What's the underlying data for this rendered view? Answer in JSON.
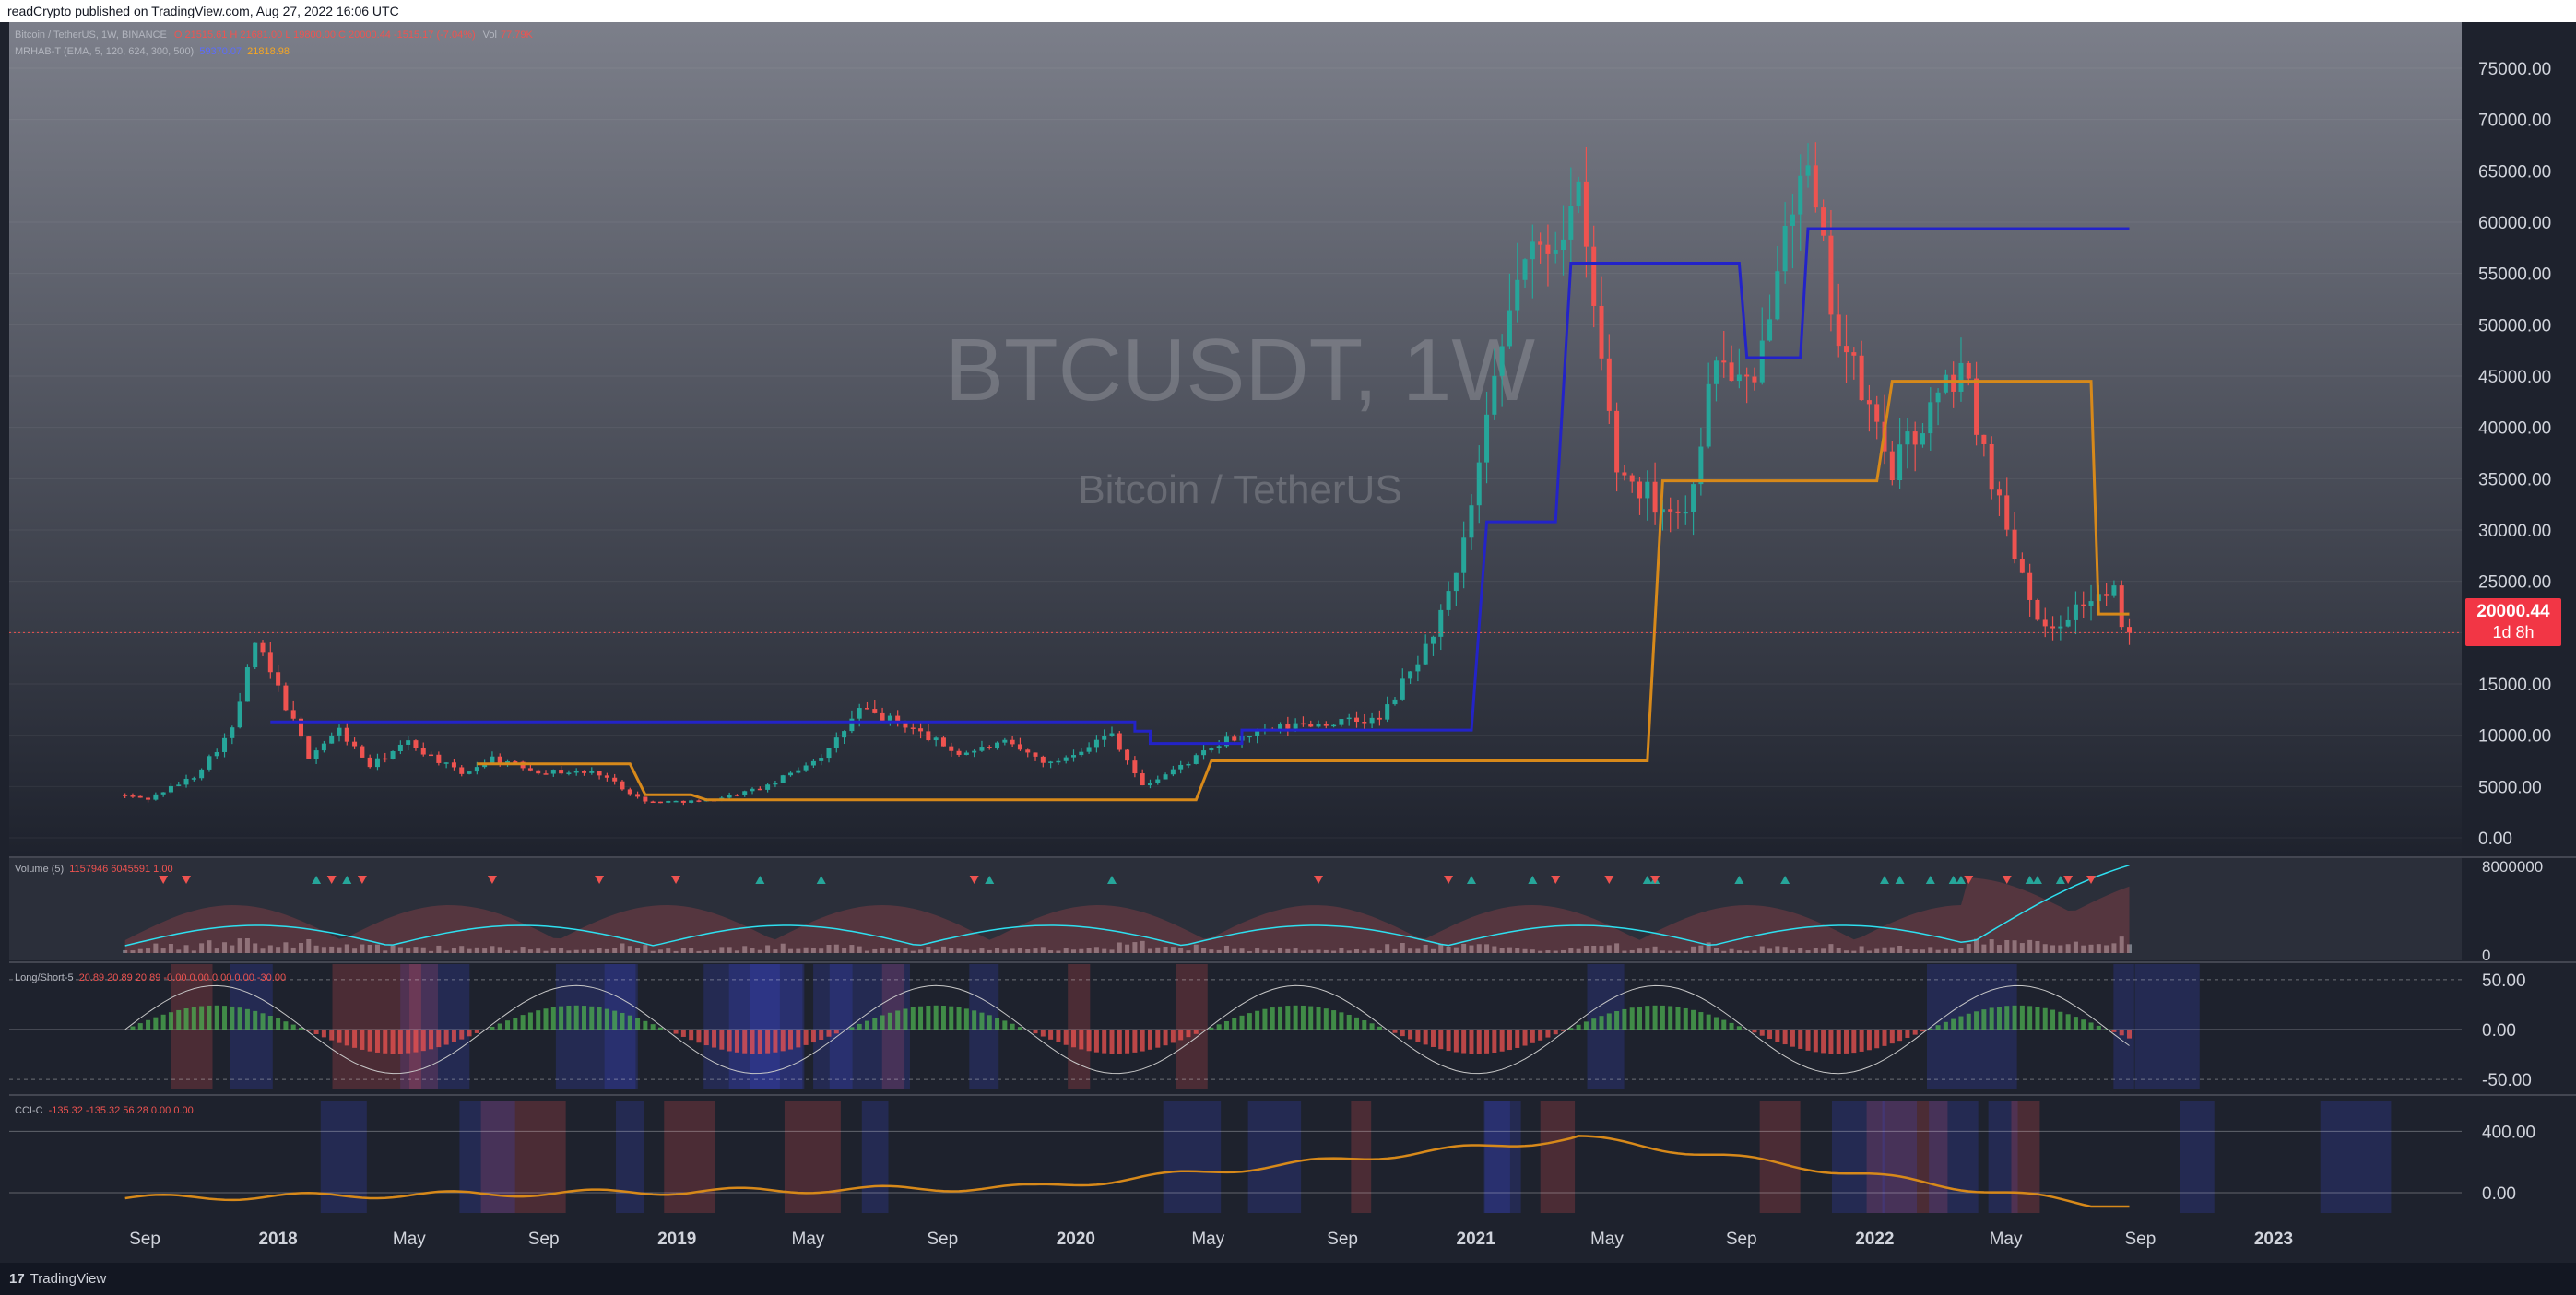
{
  "publish_note": "readCrypto published on TradingView.com, Aug 27, 2022 16:06 UTC",
  "footer": {
    "logo": "17",
    "brand": "TradingView"
  },
  "legend": {
    "symbol": "Bitcoin / TetherUS, 1W, BINANCE",
    "ohlc": "O 21515.61  H 21681.00  L 19800.00  C 20000.44  -1515.17 (-7.04%)",
    "vol_label": "Vol",
    "vol_value": "77.79K",
    "indicator": "MRHAB-T (EMA, 5, 120, 624, 300, 500)",
    "indicator_v1": "59370.07",
    "indicator_v2": "21818.98"
  },
  "watermark": {
    "symbol": "BTCUSDT, 1W",
    "name": "Bitcoin / TetherUS"
  },
  "price_tag": {
    "price": "20000.44",
    "countdown": "1d 8h"
  },
  "colors": {
    "background_top": "#7c7f8a",
    "background_bottom": "#1e222d",
    "up": "#26a69a",
    "down": "#ef5350",
    "line_blue": "#2323c8",
    "line_orange": "#d7891a",
    "cyan": "#2ee0f0"
  },
  "panes": {
    "volume": {
      "label": "Volume (5)",
      "values": "1157946  6045591  1.00"
    },
    "longshort": {
      "label": "Long/Short-5",
      "values": "20.89  20.89  20.89  -0.00  0.00  0.00  0.00  -30.00"
    },
    "cci": {
      "label": "CCI-C",
      "values": "-135.32  -135.32  56.28  0.00  0.00"
    }
  },
  "chart_data": {
    "type": "candlestick",
    "interval": "1W",
    "y_axis": [
      "75000.00",
      "70000.00",
      "65000.00",
      "60000.00",
      "55000.00",
      "50000.00",
      "45000.00",
      "40000.00",
      "35000.00",
      "30000.00",
      "25000.00",
      "20000.00",
      "15000.00",
      "10000.00",
      "5000.00",
      "0.00"
    ],
    "x_axis": [
      "Sep",
      "2018",
      "May",
      "Sep",
      "2019",
      "May",
      "Sep",
      "2020",
      "May",
      "Sep",
      "2021",
      "May",
      "Sep",
      "2022",
      "May",
      "Sep",
      "2023"
    ],
    "x_axis_bold": [
      "2018",
      "2019",
      "2020",
      "2021",
      "2022",
      "2023"
    ],
    "ylim": [
      0,
      75000
    ],
    "price_path": [
      [
        "2017-08-14",
        4200
      ],
      [
        "2017-09-11",
        3800
      ],
      [
        "2017-10-23",
        6000
      ],
      [
        "2017-11-27",
        10500
      ],
      [
        "2017-12-18",
        19000
      ],
      [
        "2018-01-08",
        14500
      ],
      [
        "2018-02-05",
        8000
      ],
      [
        "2018-03-05",
        10500
      ],
      [
        "2018-04-02",
        7000
      ],
      [
        "2018-05-07",
        9300
      ],
      [
        "2018-06-25",
        6200
      ],
      [
        "2018-07-23",
        7800
      ],
      [
        "2018-09-03",
        6500
      ],
      [
        "2018-10-29",
        6300
      ],
      [
        "2018-12-10",
        3500
      ],
      [
        "2019-02-04",
        3600
      ],
      [
        "2019-04-01",
        5000
      ],
      [
        "2019-05-27",
        8500
      ],
      [
        "2019-06-24",
        12500
      ],
      [
        "2019-08-05",
        11000
      ],
      [
        "2019-09-23",
        8200
      ],
      [
        "2019-11-04",
        9200
      ],
      [
        "2019-12-16",
        7200
      ],
      [
        "2020-02-10",
        10200
      ],
      [
        "2020-03-09",
        5000
      ],
      [
        "2020-04-13",
        7000
      ],
      [
        "2020-05-25",
        9500
      ],
      [
        "2020-07-27",
        11000
      ],
      [
        "2020-10-12",
        11500
      ],
      [
        "2020-11-23",
        18500
      ],
      [
        "2020-12-21",
        25000
      ],
      [
        "2021-01-11",
        36000
      ],
      [
        "2021-02-15",
        55000
      ],
      [
        "2021-03-15",
        58000
      ],
      [
        "2021-04-12",
        62000
      ],
      [
        "2021-05-17",
        36000
      ],
      [
        "2021-06-21",
        33000
      ],
      [
        "2021-07-19",
        31500
      ],
      [
        "2021-08-16",
        47000
      ],
      [
        "2021-09-20",
        43000
      ],
      [
        "2021-10-18",
        62000
      ],
      [
        "2021-11-08",
        64000
      ],
      [
        "2021-12-06",
        49000
      ],
      [
        "2022-01-24",
        36000
      ],
      [
        "2022-03-28",
        46000
      ],
      [
        "2022-05-09",
        30000
      ],
      [
        "2022-06-13",
        20000
      ],
      [
        "2022-07-18",
        23000
      ],
      [
        "2022-08-15",
        24000
      ],
      [
        "2022-08-22",
        20000
      ]
    ],
    "blue_line": [
      [
        "2017-12-25",
        11300
      ],
      [
        "2020-02-24",
        11300
      ],
      [
        "2020-02-24",
        10400
      ],
      [
        "2020-03-09",
        10400
      ],
      [
        "2020-03-09",
        9200
      ],
      [
        "2020-06-01",
        9200
      ],
      [
        "2020-06-01",
        10500
      ],
      [
        "2020-12-28",
        10500
      ],
      [
        "2021-01-11",
        30800
      ],
      [
        "2021-03-15",
        30800
      ],
      [
        "2021-03-29",
        56000
      ],
      [
        "2021-08-30",
        56000
      ],
      [
        "2021-09-06",
        46800
      ],
      [
        "2021-10-25",
        46800
      ],
      [
        "2021-11-01",
        59370
      ],
      [
        "2022-08-22",
        59370
      ]
    ],
    "orange_line": [
      [
        "2018-07-02",
        7200
      ],
      [
        "2018-11-19",
        7200
      ],
      [
        "2018-12-03",
        4200
      ],
      [
        "2019-01-14",
        4200
      ],
      [
        "2019-01-28",
        3700
      ],
      [
        "2020-04-20",
        3700
      ],
      [
        "2020-05-04",
        7500
      ],
      [
        "2021-06-07",
        7500
      ],
      [
        "2021-06-21",
        34800
      ],
      [
        "2022-01-03",
        34800
      ],
      [
        "2022-01-17",
        44500
      ],
      [
        "2022-07-18",
        44500
      ],
      [
        "2022-07-25",
        21819
      ],
      [
        "2022-08-22",
        21819
      ]
    ],
    "volume": {
      "ylim": [
        0,
        8000000
      ],
      "y_axis": [
        "8000000",
        "0"
      ]
    },
    "longshort": {
      "ylim": [
        -60,
        60
      ],
      "y_axis": [
        "50.00",
        "0.00",
        "-50.00"
      ]
    },
    "cci": {
      "ylim": [
        -120,
        480
      ],
      "y_axis": [
        "400.00",
        "0.00"
      ]
    }
  }
}
